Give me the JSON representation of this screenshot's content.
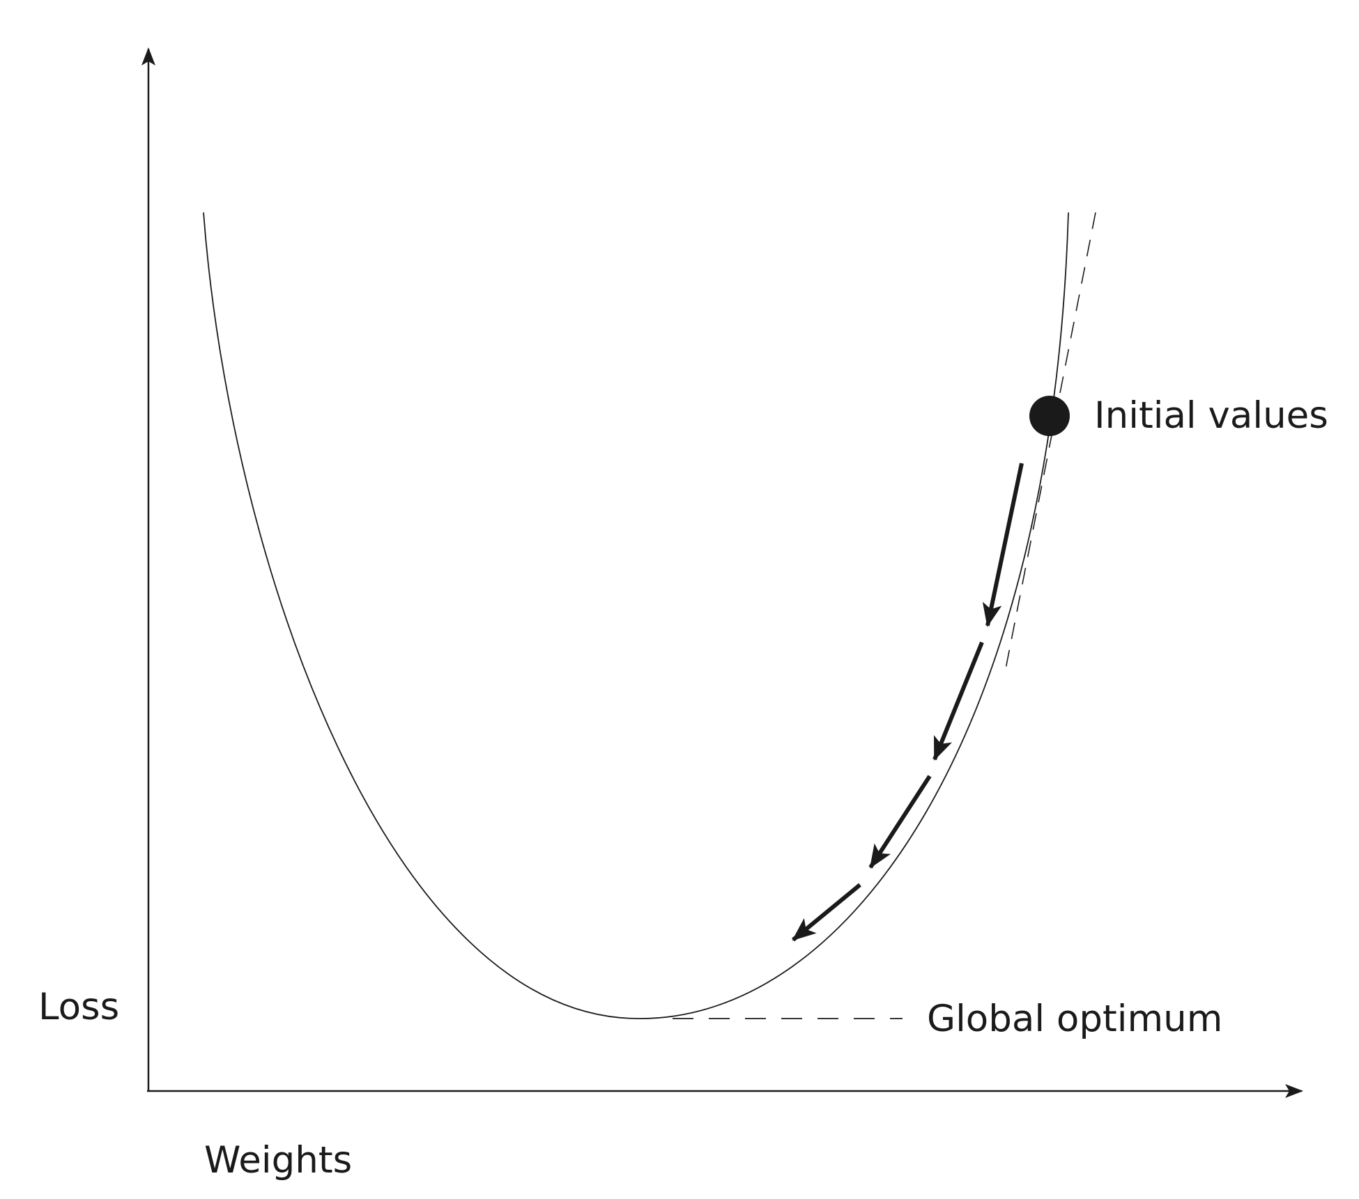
{
  "diagram": {
    "y_axis_label": "Loss",
    "x_axis_label": "Weights",
    "initial_point_label": "Initial values",
    "optimum_label": "Global optimum",
    "descent_step_count": 4
  },
  "colors": {
    "background": "#ffffff",
    "ink": "#1a1a1a"
  }
}
